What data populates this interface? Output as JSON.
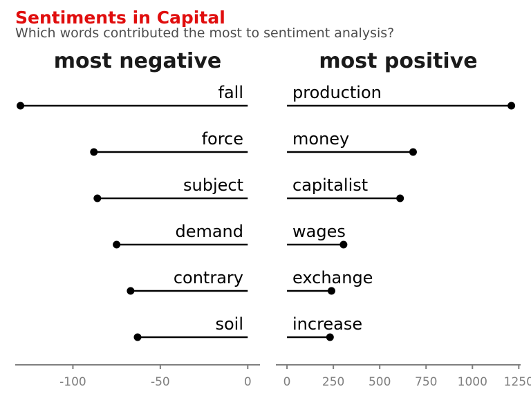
{
  "title": "Sentiments in Capital",
  "subtitle": "Which words contributed the most to sentiment analysis?",
  "colors": {
    "title": "#e00d0d",
    "subtitle": "#4d4d4d",
    "marks": "#000000",
    "axis": "#7f7f7f"
  },
  "chart_data": [
    {
      "type": "lollipop",
      "facet": "most negative",
      "categories": [
        "fall",
        "force",
        "subject",
        "demand",
        "contrary",
        "soil"
      ],
      "values": [
        -130,
        -88,
        -86,
        -75,
        -67,
        -63
      ],
      "xlim": [
        -133,
        7
      ],
      "xticks": [
        -100,
        -50,
        0
      ],
      "xtick_labels": [
        "-100",
        "-50",
        "0"
      ],
      "grid": false
    },
    {
      "type": "lollipop",
      "facet": "most positive",
      "categories": [
        "production",
        "money",
        "capitalist",
        "wages",
        "exchange",
        "increase"
      ],
      "values": [
        1210,
        680,
        610,
        305,
        240,
        232
      ],
      "xlim": [
        -60,
        1260
      ],
      "xticks": [
        0,
        250,
        500,
        750,
        1000,
        1250
      ],
      "xtick_labels": [
        "0",
        "250",
        "500",
        "750",
        "1000",
        "1250"
      ],
      "grid": false
    }
  ]
}
